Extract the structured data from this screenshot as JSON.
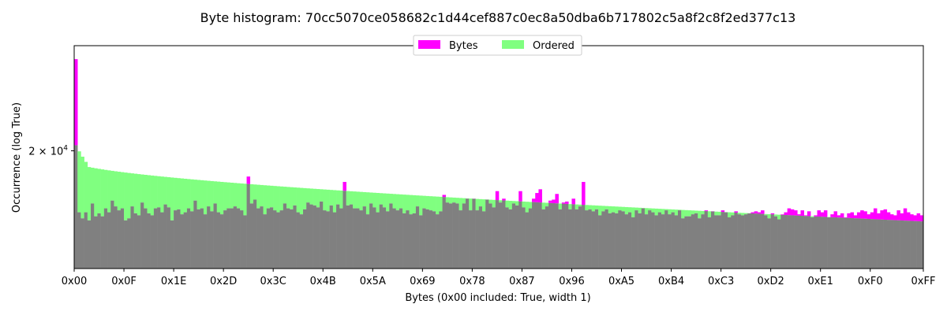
{
  "chart_data": {
    "type": "bar",
    "title": "Byte histogram: 70cc5070ce058682c1d44cef887c0ec8a50dba6b717802c5a8f2c8f2ed377c13",
    "xlabel": "Bytes (0x00 included: True, width 1)",
    "ylabel": "Occurrence (log True)",
    "y_scale": "log",
    "ylim": [
      14000,
      27500
    ],
    "y_tick": {
      "value": 20000,
      "label_base": "2 × 10",
      "label_exp": "4"
    },
    "x_ticks": [
      "0x00",
      "0x0F",
      "0x1E",
      "0x2D",
      "0x3C",
      "0x4B",
      "0x5A",
      "0x69",
      "0x78",
      "0x87",
      "0x96",
      "0xA5",
      "0xB4",
      "0xC3",
      "0xD2",
      "0xE1",
      "0xF0",
      "0xFF"
    ],
    "x_range": [
      0,
      255
    ],
    "grid": false,
    "legend": {
      "placement": "top-center",
      "entries": [
        "Bytes",
        "Ordered"
      ]
    },
    "colors": {
      "bytes": "#ff00ff",
      "ordered": "#80ff80",
      "overlap": "#808080"
    },
    "series": [
      {
        "name": "Bytes",
        "values": [
          26400,
          16600,
          16300,
          16600,
          16200,
          17050,
          16400,
          16550,
          16400,
          16800,
          16600,
          17200,
          16900,
          16700,
          16800,
          16200,
          16300,
          16900,
          16550,
          16450,
          17100,
          16800,
          16550,
          16450,
          16800,
          16850,
          16600,
          17000,
          16850,
          16200,
          16700,
          16750,
          16500,
          16600,
          16800,
          16650,
          17200,
          16750,
          16800,
          16500,
          16900,
          16650,
          17050,
          16600,
          16500,
          16700,
          16800,
          16800,
          16900,
          16800,
          16700,
          16450,
          18500,
          17050,
          17250,
          16800,
          16900,
          16500,
          16800,
          16850,
          16700,
          16600,
          16700,
          17050,
          16800,
          16750,
          16950,
          16600,
          16500,
          16750,
          17100,
          17000,
          16950,
          16850,
          17150,
          16700,
          16650,
          16950,
          16600,
          17000,
          16800,
          18200,
          16950,
          17000,
          16800,
          16800,
          16700,
          16900,
          16500,
          17050,
          16850,
          16600,
          17000,
          16850,
          16650,
          17050,
          16800,
          16700,
          16800,
          16550,
          16700,
          16500,
          16550,
          16900,
          16450,
          16800,
          16750,
          16700,
          16650,
          16500,
          16650,
          17500,
          17100,
          17050,
          17100,
          17050,
          16700,
          17050,
          17300,
          16700,
          17300,
          16700,
          16900,
          16650,
          17250,
          17050,
          16850,
          17700,
          17100,
          17300,
          16850,
          16750,
          17050,
          16950,
          17700,
          16850,
          16600,
          16800,
          17300,
          17600,
          17800,
          16750,
          16900,
          17200,
          17250,
          17550,
          16750,
          17100,
          17150,
          16750,
          17300,
          16750,
          16900,
          18200,
          16700,
          16750,
          16650,
          16750,
          16450,
          16650,
          16750,
          16550,
          16600,
          16550,
          16700,
          16650,
          16500,
          16600,
          16350,
          16700,
          16550,
          16800,
          16500,
          16700,
          16600,
          16450,
          16600,
          16500,
          16700,
          16500,
          16600,
          16450,
          16700,
          16300,
          16400,
          16400,
          16500,
          16550,
          16300,
          16500,
          16700,
          16350,
          16650,
          16450,
          16450,
          16700,
          16600,
          16350,
          16450,
          16650,
          16500,
          16450,
          16500,
          16550,
          16600,
          16650,
          16600,
          16700,
          16450,
          16300,
          16550,
          16400,
          16250,
          16500,
          16600,
          16800,
          16750,
          16700,
          16500,
          16700,
          16450,
          16650,
          16350,
          16450,
          16700,
          16600,
          16700,
          16350,
          16500,
          16650,
          16450,
          16550,
          16350,
          16550,
          16600,
          16450,
          16600,
          16700,
          16650,
          16500,
          16600,
          16800,
          16550,
          16700,
          16750,
          16600,
          16500,
          16450,
          16700,
          16550,
          16800,
          16600,
          16500,
          16450,
          16550,
          16450
        ]
      },
      {
        "name": "Ordered",
        "start_value": 19300,
        "end_value": 16150
      }
    ]
  }
}
